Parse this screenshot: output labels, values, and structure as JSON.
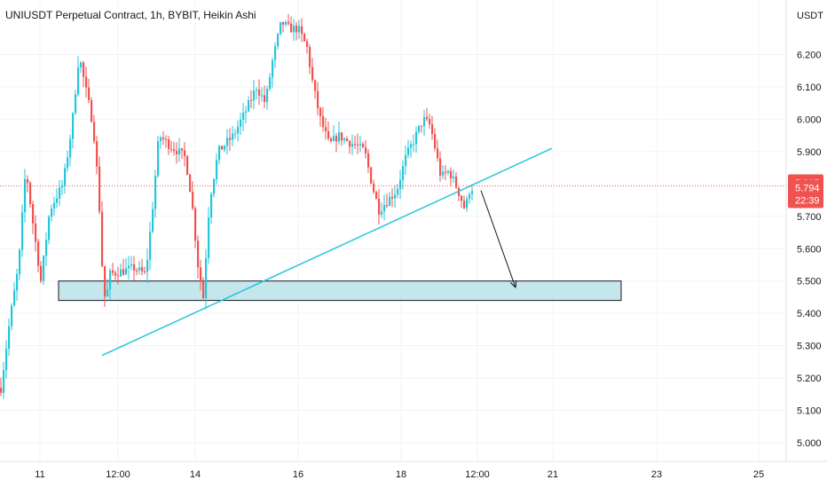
{
  "chart_data": {
    "type": "candlestick",
    "title": "UNIUSDT Perpetual Contract, 1h, BYBIT, Heikin Ashi",
    "currency": "USDT",
    "y_ticks": [
      "6.200",
      "6.100",
      "6.000",
      "5.900",
      "5.805",
      "5.700",
      "5.600",
      "5.500",
      "5.400",
      "5.300",
      "5.200",
      "5.100",
      "5.000"
    ],
    "x_ticks": [
      {
        "label": "11",
        "t": 45
      },
      {
        "label": "12:00",
        "t": 133
      },
      {
        "label": "14",
        "t": 220
      },
      {
        "label": "16",
        "t": 336
      },
      {
        "label": "18",
        "t": 452
      },
      {
        "label": "12:00",
        "t": 538
      },
      {
        "label": "21",
        "t": 623
      },
      {
        "label": "23",
        "t": 740
      },
      {
        "label": "25",
        "t": 855
      }
    ],
    "ylim": [
      4.97,
      6.3
    ],
    "last_price": "5.794",
    "last_price_value": 5.794,
    "countdown": "22:39",
    "tag_high": "5.805",
    "tag_high_value": 5.805,
    "colors": {
      "up": "#26c6da",
      "down": "#ef5350",
      "trendline": "#26c6da",
      "zone_fill": "#b2dfe6",
      "zone_border": "#131722",
      "last": "#ef5350"
    },
    "anchors": [
      [
        0,
        5.17
      ],
      [
        10,
        5.38
      ],
      [
        20,
        5.55
      ],
      [
        28,
        5.85
      ],
      [
        35,
        5.7
      ],
      [
        45,
        5.5
      ],
      [
        55,
        5.72
      ],
      [
        70,
        5.8
      ],
      [
        80,
        5.98
      ],
      [
        88,
        6.2
      ],
      [
        95,
        6.1
      ],
      [
        104,
        5.98
      ],
      [
        110,
        5.78
      ],
      [
        114,
        5.55
      ],
      [
        118,
        5.42
      ],
      [
        122,
        5.52
      ],
      [
        135,
        5.53
      ],
      [
        150,
        5.54
      ],
      [
        163,
        5.52
      ],
      [
        170,
        5.7
      ],
      [
        178,
        5.95
      ],
      [
        190,
        5.92
      ],
      [
        200,
        5.9
      ],
      [
        208,
        5.88
      ],
      [
        215,
        5.75
      ],
      [
        222,
        5.55
      ],
      [
        228,
        5.45
      ],
      [
        235,
        5.75
      ],
      [
        245,
        5.9
      ],
      [
        262,
        5.95
      ],
      [
        275,
        6.02
      ],
      [
        288,
        6.1
      ],
      [
        298,
        6.05
      ],
      [
        306,
        6.18
      ],
      [
        316,
        6.3
      ],
      [
        325,
        6.28
      ],
      [
        335,
        6.28
      ],
      [
        345,
        6.22
      ],
      [
        352,
        6.1
      ],
      [
        360,
        6.0
      ],
      [
        370,
        5.92
      ],
      [
        380,
        5.95
      ],
      [
        392,
        5.93
      ],
      [
        400,
        5.92
      ],
      [
        410,
        5.9
      ],
      [
        418,
        5.8
      ],
      [
        426,
        5.72
      ],
      [
        436,
        5.75
      ],
      [
        446,
        5.78
      ],
      [
        456,
        5.88
      ],
      [
        466,
        5.94
      ],
      [
        476,
        6.0
      ],
      [
        484,
        5.98
      ],
      [
        490,
        5.9
      ],
      [
        496,
        5.82
      ],
      [
        505,
        5.84
      ],
      [
        512,
        5.8
      ],
      [
        518,
        5.76
      ],
      [
        523,
        5.72
      ],
      [
        528,
        5.78
      ],
      [
        532,
        5.79
      ]
    ],
    "trendline": {
      "p1": {
        "t": 115,
        "price": 5.27
      },
      "p2": {
        "t": 622,
        "price": 5.91
      }
    },
    "zone": {
      "t_start": 66,
      "t_end": 700,
      "price_low": 5.44,
      "price_high": 5.5
    },
    "arrow": {
      "from": {
        "t": 542,
        "price": 5.78
      },
      "to": {
        "t": 581,
        "price": 5.48
      }
    }
  }
}
